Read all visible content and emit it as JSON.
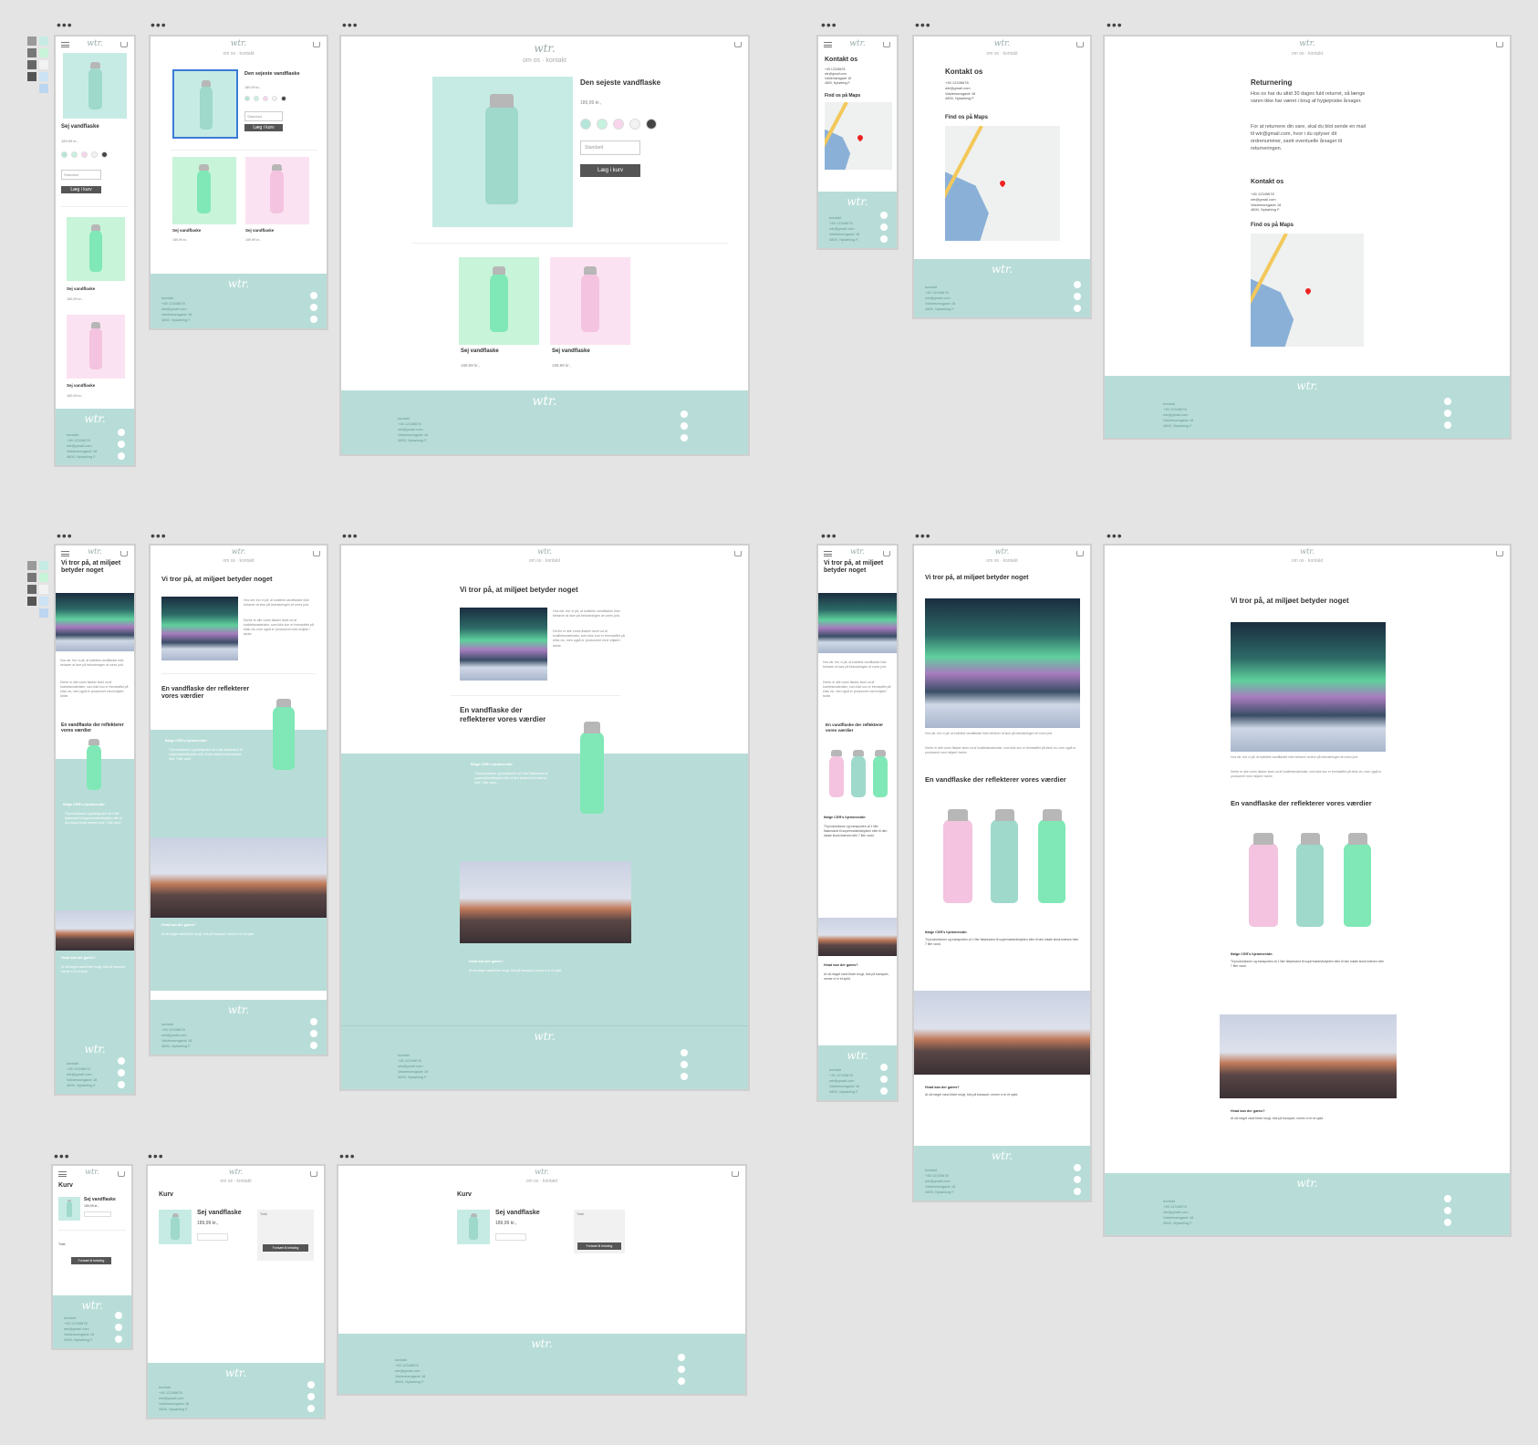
{
  "brand": "wtr.",
  "nav": {
    "om_os": "om os",
    "kontakt": "kontakt",
    "sep": "·"
  },
  "product": {
    "featured_title": "Den sejeste vandflaske",
    "title": "Sej vandflaske",
    "price": "189,99 kr.,",
    "size": "Standard",
    "add_to_cart": "Læg i kurv"
  },
  "about": {
    "headline": "Vi tror på, at miljøet betyder noget",
    "intro": "Hos wtr. tror vi på, at kvalitets vandflasker ikke behøver at lave på bekostningen af vores jord.",
    "intro2": "Derfor er alle vores flasker lavet ud af kvalitetsmaterialer, som ikke kun er fremstaffet på etisk vis, men også er produceret med miljøet i tanke.",
    "section2": "En vandflaske der reflekterer vores værdier",
    "csr_title": "Ifølge CSR's hjemmeside:",
    "csr_body": "Til produktionen og transporten af 1 liter flaskevand til supermarkedshylden eller til den lokale kiosk kræves hele 7 liter vand.",
    "what_title": "Hvad kan der gøres?",
    "what_body": "At så meget vand bliver brugt, blot på transport, mener vi er et spild."
  },
  "contact": {
    "title": "Kontakt os",
    "phone": "+45 12345678",
    "email": "wtr@gmail.com",
    "street": "Valdemarsgade 18",
    "city": "4800, Nykøbing F.",
    "maps_title": "Find os på Maps",
    "returns_title": "Returnering",
    "returns_body": "Hos os har du altid 30 dages fuld returret, så længe varen ikke har været i brug af hygiejniske årsager.",
    "returns_body2": "For at returnere din vare, skal du blot sende en mail til wtr@gmail.com, hvor i du oplyser dit ordrenummer, samt eventuelle årsager til returneringen."
  },
  "cart": {
    "title": "Kurv",
    "price": "189,99 kr.,",
    "qty_label": "Total",
    "checkout": "Fortsæt til betaling",
    "total_label": "Total"
  },
  "footer": {
    "lines": [
      "kontakt",
      "+45 12345678",
      "wtr@gmail.com",
      "Valdemarsgade 18",
      "4800, Nykøbing F."
    ]
  },
  "colors": {
    "mint": "#c6ebe4",
    "footer": "#b8ddd8",
    "green": "#c8f4d9",
    "pink": "#fbe2f2"
  },
  "swatches": [
    "#b4e6d9",
    "#c6f2df",
    "#f8d5ec",
    "#f2f2f2",
    "#444444"
  ]
}
